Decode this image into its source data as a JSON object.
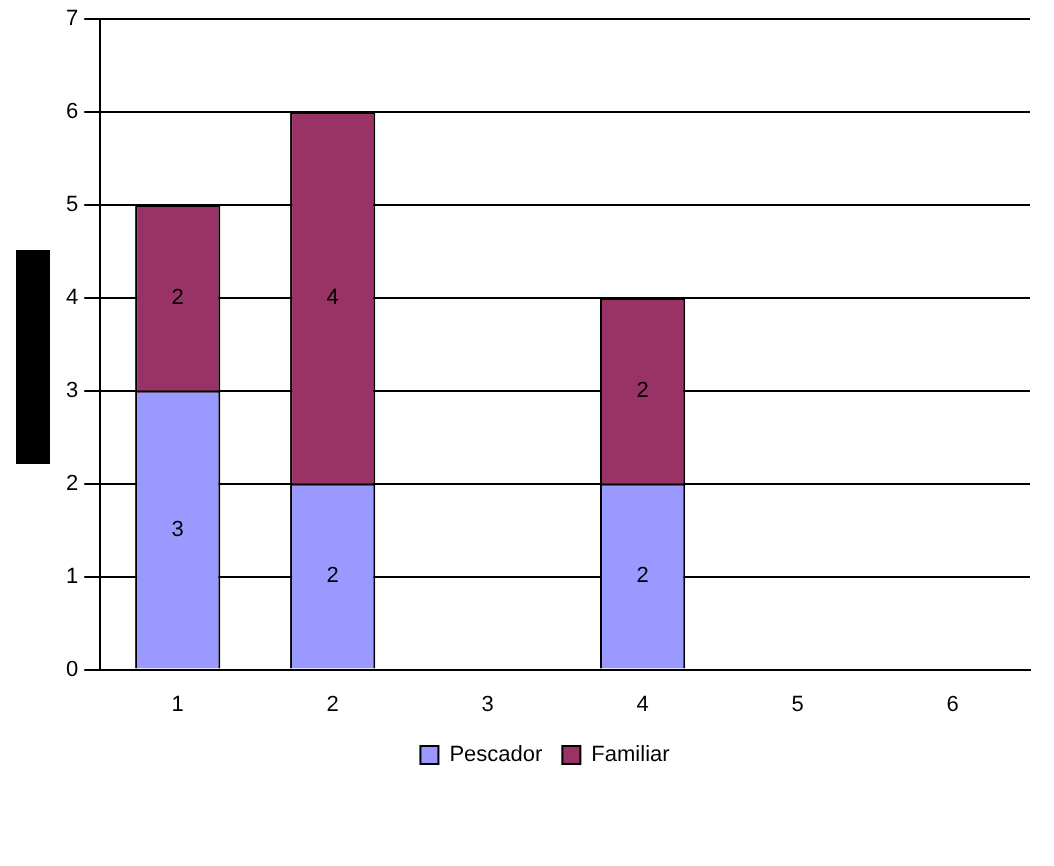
{
  "chart_data": {
    "type": "bar",
    "stacked": true,
    "categories": [
      "1",
      "2",
      "3",
      "4",
      "5",
      "6"
    ],
    "series": [
      {
        "name": "Pescador",
        "color": "#9999ff",
        "values": [
          3,
          2,
          null,
          2,
          null,
          null
        ]
      },
      {
        "name": "Familiar",
        "color": "#993366",
        "values": [
          2,
          4,
          null,
          2,
          null,
          null
        ]
      }
    ],
    "ylim": [
      0,
      7
    ],
    "yticks": [
      0,
      1,
      2,
      3,
      4,
      5,
      6,
      7
    ],
    "grid": "y",
    "legend": "bottom",
    "data_labels": true
  }
}
